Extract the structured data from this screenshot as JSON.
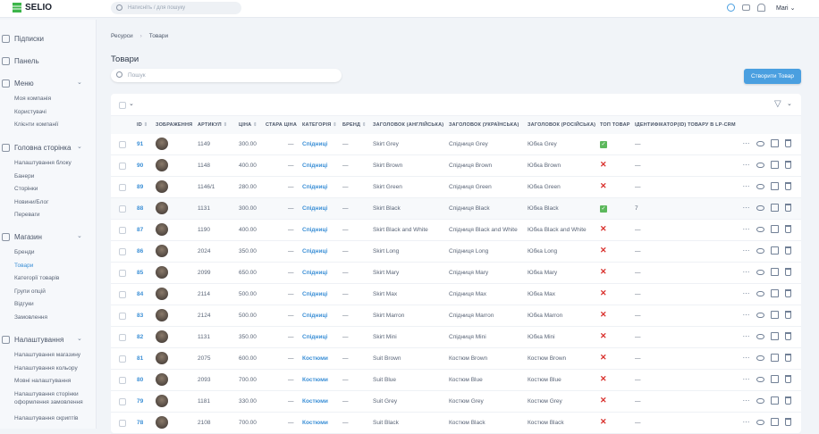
{
  "app": {
    "logo": "SELIO",
    "search_placeholder": "Натисніть / для пошуку",
    "user": "Mari"
  },
  "sidebar": {
    "groups": [
      {
        "label": "Підписки",
        "items": []
      },
      {
        "label": "Панель",
        "items": []
      },
      {
        "label": "Меню",
        "items": [
          "Моя компанія",
          "Користувачі",
          "Клієнти компанії"
        ]
      },
      {
        "label": "Головна сторінка",
        "items": [
          "Налаштування блоку",
          "Банери",
          "Сторінки",
          "Новини/Блог",
          "Переваги"
        ]
      },
      {
        "label": "Магазин",
        "items": [
          "Бренди",
          "Товари",
          "Категорії товарів",
          "Групи опцій",
          "Відгуки",
          "Замовлення"
        ]
      },
      {
        "label": "Налаштування",
        "items": [
          "Налаштування магазину",
          "Налаштування кольору",
          "Мовні налаштування",
          "Налаштування сторінки оформлення замовлення",
          "Налаштування скриптів"
        ]
      }
    ],
    "active": "Товари"
  },
  "breadcrumb": [
    "Ресурси",
    "Товари"
  ],
  "page": {
    "title": "Товари",
    "search_placeholder": "Пошук",
    "create_button": "Створити Товар"
  },
  "table": {
    "columns": [
      "ID",
      "ЗОБРАЖЕННЯ",
      "АРТИКУЛ",
      "ЦІНА",
      "СТАРА ЦІНА",
      "КАТЕГОРІЯ",
      "БРЕНД",
      "ЗАГОЛОВОК (АНГЛІЙСЬКА)",
      "ЗАГОЛОВОК (УКРАЇНСЬКА)",
      "ЗАГОЛОВОК (РОСІЙСЬКА)",
      "ТОП ТОВАР",
      "ІДЕНТИФІКАТОР(ID) ТОВАРУ В LP-CRM"
    ],
    "rows": [
      {
        "id": "91",
        "sku": "1149",
        "price": "300.00",
        "old": "—",
        "cat": "Спідниці",
        "brand": "—",
        "en": "Skirt Grey",
        "ua": "Спідниця Grey",
        "ru": "Юбка Grey",
        "top": true,
        "crm": "—"
      },
      {
        "id": "90",
        "sku": "1148",
        "price": "400.00",
        "old": "—",
        "cat": "Спідниці",
        "brand": "—",
        "en": "Skirt Brown",
        "ua": "Спідниця Brown",
        "ru": "Юбка Brown",
        "top": false,
        "crm": "—"
      },
      {
        "id": "89",
        "sku": "1146/1",
        "price": "280.00",
        "old": "—",
        "cat": "Спідниці",
        "brand": "—",
        "en": "Skirt Green",
        "ua": "Спідниця Green",
        "ru": "Юбка Green",
        "top": false,
        "crm": "—"
      },
      {
        "id": "88",
        "sku": "1131",
        "price": "300.00",
        "old": "—",
        "cat": "Спідниці",
        "brand": "—",
        "en": "Skirt Black",
        "ua": "Спідниця Black",
        "ru": "Юбка Black",
        "top": true,
        "crm": "7"
      },
      {
        "id": "87",
        "sku": "1190",
        "price": "400.00",
        "old": "—",
        "cat": "Спідниці",
        "brand": "—",
        "en": "Skirt Black and White",
        "ua": "Спідниця Black and White",
        "ru": "Юбка Black and White",
        "top": false,
        "crm": "—"
      },
      {
        "id": "86",
        "sku": "2024",
        "price": "350.00",
        "old": "—",
        "cat": "Спідниці",
        "brand": "—",
        "en": "Skirt Long",
        "ua": "Спідниця Long",
        "ru": "Юбка Long",
        "top": false,
        "crm": "—"
      },
      {
        "id": "85",
        "sku": "2099",
        "price": "650.00",
        "old": "—",
        "cat": "Спідниці",
        "brand": "—",
        "en": "Skirt Mary",
        "ua": "Спідниця Mary",
        "ru": "Юбка Mary",
        "top": false,
        "crm": "—"
      },
      {
        "id": "84",
        "sku": "2114",
        "price": "500.00",
        "old": "—",
        "cat": "Спідниці",
        "brand": "—",
        "en": "Skirt Max",
        "ua": "Спідниця Max",
        "ru": "Юбка Max",
        "top": false,
        "crm": "—"
      },
      {
        "id": "83",
        "sku": "2124",
        "price": "500.00",
        "old": "—",
        "cat": "Спідниці",
        "brand": "—",
        "en": "Skirt Marron",
        "ua": "Спідниця Marron",
        "ru": "Юбка Marron",
        "top": false,
        "crm": "—"
      },
      {
        "id": "82",
        "sku": "1131",
        "price": "350.00",
        "old": "—",
        "cat": "Спідниці",
        "brand": "—",
        "en": "Skirt Mini",
        "ua": "Спідниця Mini",
        "ru": "Юбка Mini",
        "top": false,
        "crm": "—"
      },
      {
        "id": "81",
        "sku": "2075",
        "price": "600.00",
        "old": "—",
        "cat": "Костюми",
        "brand": "—",
        "en": "Suit Brown",
        "ua": "Костюм Brown",
        "ru": "Костюм Brown",
        "top": false,
        "crm": "—"
      },
      {
        "id": "80",
        "sku": "2093",
        "price": "700.00",
        "old": "—",
        "cat": "Костюми",
        "brand": "—",
        "en": "Suit Blue",
        "ua": "Костюм Blue",
        "ru": "Костюм Blue",
        "top": false,
        "crm": "—"
      },
      {
        "id": "79",
        "sku": "1181",
        "price": "330.00",
        "old": "—",
        "cat": "Костюми",
        "brand": "—",
        "en": "Suit Grey",
        "ua": "Костюм Grey",
        "ru": "Костюм Grey",
        "top": false,
        "crm": "—"
      },
      {
        "id": "78",
        "sku": "2108",
        "price": "700.00",
        "old": "—",
        "cat": "Костюми",
        "brand": "—",
        "en": "Suit Black",
        "ua": "Костюм Black",
        "ru": "Костюм Black",
        "top": false,
        "crm": "—"
      }
    ]
  },
  "colors": {
    "accent": "#4a9fe0",
    "link": "#3b8fd6",
    "yes": "#5cb85c",
    "no": "#d9302c"
  }
}
